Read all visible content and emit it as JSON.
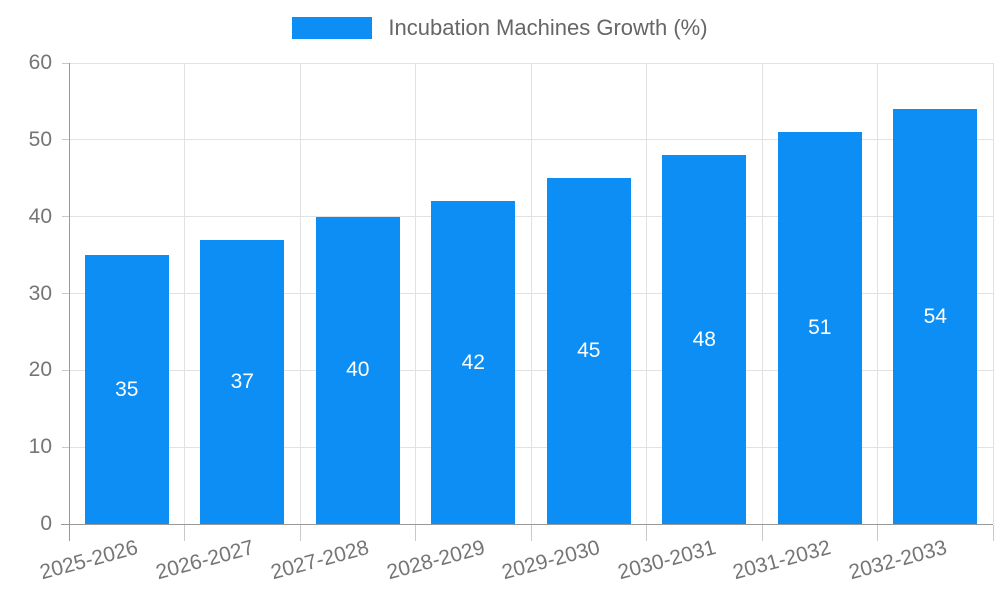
{
  "legend": {
    "label": "Incubation Machines Growth (%)"
  },
  "chart_data": {
    "type": "bar",
    "title": "",
    "series_name": "Incubation Machines Growth (%)",
    "categories": [
      "2025-2026",
      "2026-2027",
      "2027-2028",
      "2028-2029",
      "2029-2030",
      "2030-2031",
      "2031-2032",
      "2032-2033"
    ],
    "values": [
      35,
      37,
      40,
      42,
      45,
      48,
      51,
      54
    ],
    "xlabel": "",
    "ylabel": "",
    "ylim": [
      0,
      60
    ],
    "yticks": [
      0,
      10,
      20,
      30,
      40,
      50,
      60
    ],
    "grid": true,
    "legend_position": "top-center",
    "value_labels_inside": true,
    "x_label_rotation_deg": -15,
    "colors": {
      "bar": "#0d8ef5",
      "value_label": "#ffffff",
      "axis_line": "#999999",
      "gridline": "#e2e2e2",
      "tick": "#c9c9c9",
      "axis_label": "#757575",
      "legend_text": "#666666",
      "background": "#ffffff"
    }
  }
}
